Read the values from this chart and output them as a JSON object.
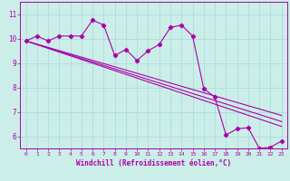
{
  "title": "",
  "xlabel": "Windchill (Refroidissement éolien,°C)",
  "ylabel": "",
  "bg_color": "#cceee8",
  "line_color": "#aa00aa",
  "grid_color": "#aadddd",
  "xlim": [
    -0.5,
    23.5
  ],
  "ylim": [
    5.5,
    11.5
  ],
  "yticks": [
    6,
    7,
    8,
    9,
    10,
    11
  ],
  "xticks": [
    0,
    1,
    2,
    3,
    4,
    5,
    6,
    7,
    8,
    9,
    10,
    11,
    12,
    13,
    14,
    15,
    16,
    17,
    18,
    19,
    20,
    21,
    22,
    23
  ],
  "line1_x": [
    0,
    1,
    2,
    3,
    4,
    5,
    6,
    7,
    8,
    9,
    10,
    11,
    12,
    13,
    14,
    15,
    16,
    17,
    18,
    19,
    20,
    21,
    22,
    23
  ],
  "line1_y": [
    9.9,
    10.1,
    9.9,
    10.1,
    10.1,
    10.1,
    10.75,
    10.55,
    9.3,
    9.55,
    9.1,
    9.5,
    9.75,
    10.45,
    10.55,
    10.1,
    7.95,
    7.6,
    6.05,
    6.3,
    6.35,
    5.5,
    5.55,
    5.8
  ],
  "line2_x": [
    0,
    23
  ],
  "line2_y": [
    9.9,
    6.4
  ],
  "line3_x": [
    0,
    23
  ],
  "line3_y": [
    9.9,
    6.6
  ],
  "line4_x": [
    0,
    23
  ],
  "line4_y": [
    9.9,
    6.85
  ]
}
